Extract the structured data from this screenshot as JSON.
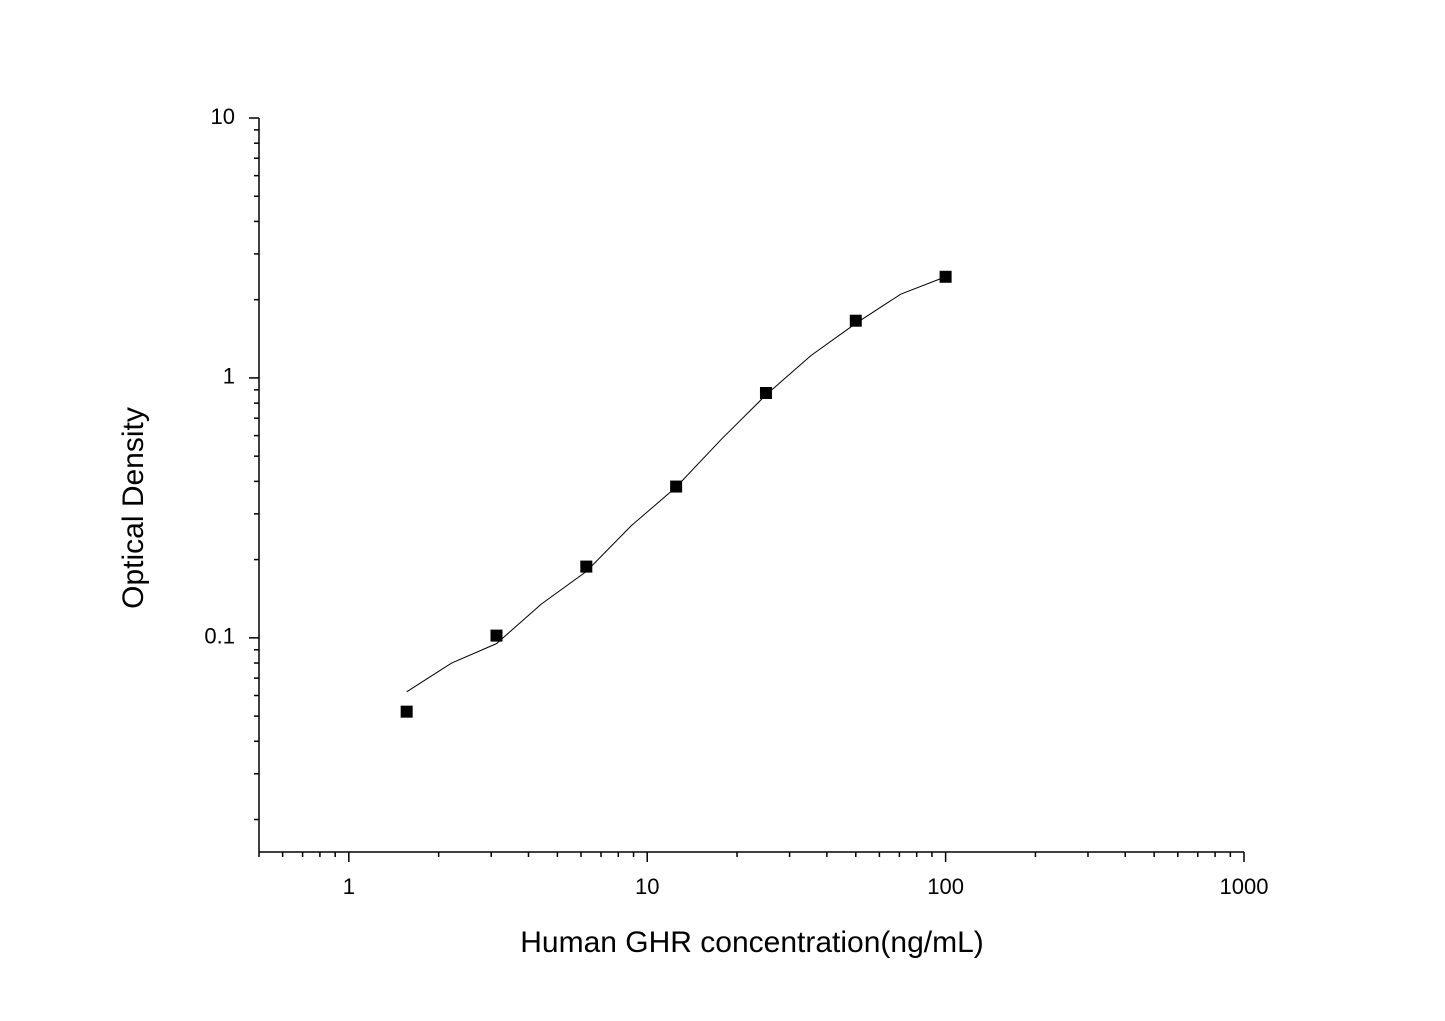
{
  "chart_data": {
    "type": "scatter",
    "x_label": "Human GHR concentration(ng/mL)",
    "y_label": "Optical Density",
    "x": [
      1.5625,
      3.125,
      6.25,
      12.5,
      25,
      50,
      100
    ],
    "values": [
      0.052,
      0.102,
      0.188,
      0.382,
      0.875,
      1.66,
      2.45
    ],
    "color": "#000000",
    "curve": {
      "x": [
        1.5625,
        2.21,
        3.125,
        4.42,
        6.25,
        8.84,
        12.5,
        17.7,
        25,
        35.4,
        50,
        70.7,
        100
      ],
      "values": [
        0.062,
        0.08,
        0.095,
        0.135,
        0.18,
        0.27,
        0.38,
        0.58,
        0.86,
        1.22,
        1.62,
        2.1,
        2.45
      ]
    },
    "xscale": "log",
    "yscale": "log",
    "xlim": [
      0.5,
      1000
    ],
    "ylim": [
      0.015,
      10
    ],
    "xticks": [
      1,
      10,
      100,
      1000
    ],
    "yticks": [
      0.1,
      1,
      10
    ]
  }
}
